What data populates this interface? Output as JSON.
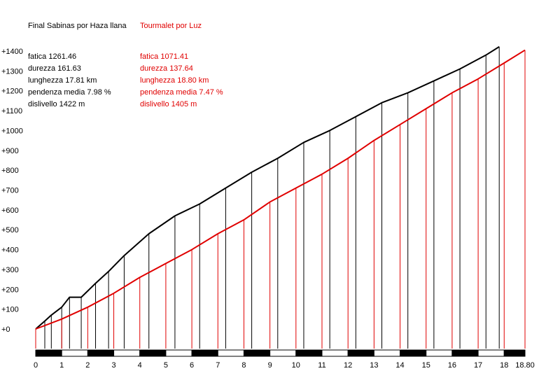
{
  "chart_data": {
    "type": "line",
    "title": "",
    "xlabel": "",
    "ylabel": "",
    "xlim": [
      0,
      18.8
    ],
    "ylim": [
      0,
      1400
    ],
    "x_ticks": [
      "0",
      "1",
      "2",
      "3",
      "4",
      "5",
      "6",
      "7",
      "8",
      "9",
      "10",
      "11",
      "12",
      "13",
      "14",
      "15",
      "16",
      "17",
      "18",
      "18.80"
    ],
    "y_ticks": [
      "+0",
      "+100",
      "+200",
      "+300",
      "+400",
      "+500",
      "+600",
      "+700",
      "+800",
      "+900",
      "+1000",
      "+1100",
      "+1200",
      "+1300",
      "+1400"
    ],
    "grid": false,
    "series": [
      {
        "name": "Final Sabinas por Haza llana",
        "color": "#000000",
        "x": [
          0,
          0.35,
          0.6,
          1.0,
          1.3,
          1.75,
          2.3,
          2.8,
          3.4,
          4.35,
          5.35,
          6.3,
          7.3,
          8.3,
          9.3,
          10.3,
          11.3,
          12.3,
          13.3,
          14.3,
          15.3,
          16.3,
          17.3,
          17.81
        ],
        "y": [
          0,
          40,
          70,
          110,
          160,
          160,
          230,
          290,
          370,
          480,
          570,
          630,
          710,
          790,
          860,
          940,
          1000,
          1070,
          1140,
          1190,
          1250,
          1310,
          1380,
          1422
        ]
      },
      {
        "name": "Tourmalet por Luz",
        "color": "#e00000",
        "x": [
          0,
          1.0,
          2.0,
          3.0,
          4.0,
          5.0,
          6.0,
          7.0,
          8.0,
          9.0,
          10.0,
          11.0,
          12.0,
          13.0,
          14.0,
          15.0,
          16.0,
          17.0,
          18.0,
          18.8
        ],
        "y": [
          0,
          50,
          110,
          180,
          260,
          330,
          400,
          480,
          550,
          640,
          710,
          780,
          860,
          950,
          1030,
          1110,
          1190,
          1260,
          1340,
          1405
        ]
      }
    ],
    "legend": [
      {
        "name": "Final Sabinas por Haza llana",
        "color": "#000000",
        "stats": [
          "fatica 1261.46",
          "durezza 161.63",
          "lunghezza 17.81 km",
          "pendenza media 7.98 %",
          "dislivello 1422 m"
        ]
      },
      {
        "name": "Tourmalet por Luz",
        "color": "#e00000",
        "stats": [
          "fatica 1071.41",
          "durezza 137.64",
          "lunghezza 18.80 km",
          "pendenza media 7.47 %",
          "dislivello 1405 m"
        ]
      }
    ]
  }
}
